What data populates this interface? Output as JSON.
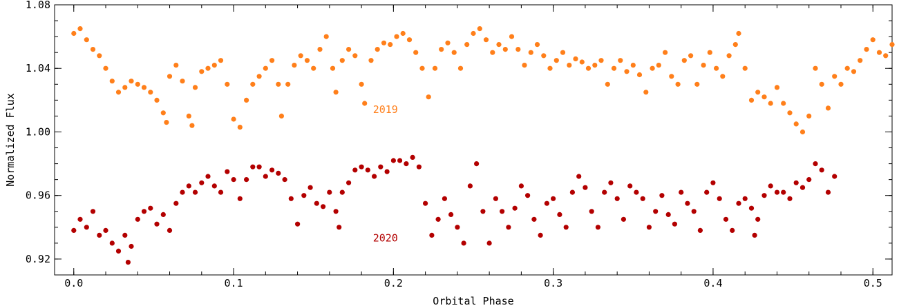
{
  "chart_data": {
    "type": "scatter",
    "title": "",
    "xlabel": "Orbital Phase",
    "ylabel": "Normalized Flux",
    "xlim": [
      -0.012,
      0.512
    ],
    "ylim": [
      0.91,
      1.08
    ],
    "x_ticks": [
      0.0,
      0.1,
      0.2,
      0.3,
      0.4,
      0.5
    ],
    "x_tick_labels": [
      "0.0",
      "0.1",
      "0.2",
      "0.3",
      "0.4",
      "0.5"
    ],
    "y_ticks": [
      0.92,
      0.96,
      1.0,
      1.04,
      1.08
    ],
    "y_tick_labels": [
      "0.92",
      "0.96",
      "1.00",
      "1.04",
      "1.08"
    ],
    "grid": false,
    "annotations": [
      {
        "text": "2019",
        "x": 0.195,
        "y": 1.012,
        "color": "#ff7f1a"
      },
      {
        "text": "2020",
        "x": 0.195,
        "y": 0.931,
        "color": "#b30000"
      }
    ],
    "series": [
      {
        "name": "2019",
        "color": "#ff7f1a",
        "x": [
          0.0,
          0.004,
          0.008,
          0.012,
          0.016,
          0.02,
          0.024,
          0.028,
          0.032,
          0.036,
          0.04,
          0.044,
          0.048,
          0.052,
          0.056,
          0.058,
          0.06,
          0.064,
          0.068,
          0.072,
          0.074,
          0.076,
          0.08,
          0.084,
          0.088,
          0.092,
          0.096,
          0.1,
          0.104,
          0.108,
          0.112,
          0.116,
          0.12,
          0.124,
          0.128,
          0.13,
          0.134,
          0.138,
          0.142,
          0.146,
          0.15,
          0.154,
          0.158,
          0.162,
          0.164,
          0.168,
          0.172,
          0.176,
          0.18,
          0.182,
          0.186,
          0.19,
          0.194,
          0.198,
          0.202,
          0.206,
          0.21,
          0.214,
          0.218,
          0.222,
          0.226,
          0.23,
          0.234,
          0.238,
          0.242,
          0.246,
          0.25,
          0.254,
          0.258,
          0.262,
          0.266,
          0.27,
          0.274,
          0.278,
          0.282,
          0.286,
          0.29,
          0.294,
          0.298,
          0.302,
          0.306,
          0.31,
          0.314,
          0.318,
          0.322,
          0.326,
          0.33,
          0.334,
          0.338,
          0.342,
          0.346,
          0.35,
          0.354,
          0.358,
          0.362,
          0.366,
          0.37,
          0.374,
          0.378,
          0.382,
          0.386,
          0.39,
          0.394,
          0.398,
          0.402,
          0.406,
          0.41,
          0.414,
          0.416,
          0.42,
          0.424,
          0.428,
          0.432,
          0.436,
          0.44,
          0.444,
          0.448,
          0.452,
          0.456,
          0.46,
          0.464,
          0.468,
          0.472,
          0.476,
          0.48,
          0.484,
          0.488,
          0.492,
          0.496,
          0.5,
          0.504,
          0.508,
          0.512
        ],
        "y": [
          1.062,
          1.065,
          1.058,
          1.052,
          1.048,
          1.04,
          1.032,
          1.025,
          1.028,
          1.032,
          1.03,
          1.028,
          1.025,
          1.02,
          1.012,
          1.006,
          1.035,
          1.042,
          1.032,
          1.01,
          1.004,
          1.028,
          1.038,
          1.04,
          1.042,
          1.045,
          1.03,
          1.008,
          1.003,
          1.02,
          1.03,
          1.035,
          1.04,
          1.045,
          1.03,
          1.01,
          1.03,
          1.042,
          1.048,
          1.045,
          1.04,
          1.052,
          1.06,
          1.04,
          1.025,
          1.045,
          1.052,
          1.048,
          1.03,
          1.018,
          1.045,
          1.052,
          1.056,
          1.055,
          1.06,
          1.062,
          1.058,
          1.05,
          1.04,
          1.022,
          1.04,
          1.052,
          1.056,
          1.05,
          1.04,
          1.055,
          1.062,
          1.065,
          1.058,
          1.05,
          1.055,
          1.052,
          1.06,
          1.052,
          1.042,
          1.05,
          1.055,
          1.048,
          1.04,
          1.045,
          1.05,
          1.042,
          1.046,
          1.044,
          1.04,
          1.042,
          1.045,
          1.03,
          1.04,
          1.045,
          1.038,
          1.042,
          1.036,
          1.025,
          1.04,
          1.042,
          1.05,
          1.035,
          1.03,
          1.045,
          1.048,
          1.03,
          1.042,
          1.05,
          1.04,
          1.035,
          1.048,
          1.055,
          1.062,
          1.04,
          1.02,
          1.025,
          1.022,
          1.018,
          1.028,
          1.018,
          1.012,
          1.005,
          1.0,
          1.01,
          1.04,
          1.03,
          1.015,
          1.035,
          1.03,
          1.04,
          1.038,
          1.045,
          1.052,
          1.058,
          1.05,
          1.048,
          1.055
        ]
      },
      {
        "name": "2020",
        "color": "#b30000",
        "x": [
          0.0,
          0.004,
          0.008,
          0.012,
          0.016,
          0.02,
          0.024,
          0.028,
          0.032,
          0.034,
          0.036,
          0.04,
          0.044,
          0.048,
          0.052,
          0.056,
          0.06,
          0.064,
          0.068,
          0.072,
          0.076,
          0.08,
          0.084,
          0.088,
          0.092,
          0.096,
          0.1,
          0.104,
          0.108,
          0.112,
          0.116,
          0.12,
          0.124,
          0.128,
          0.132,
          0.136,
          0.14,
          0.144,
          0.148,
          0.152,
          0.156,
          0.16,
          0.164,
          0.166,
          0.168,
          0.172,
          0.176,
          0.18,
          0.184,
          0.188,
          0.192,
          0.196,
          0.2,
          0.204,
          0.208,
          0.212,
          0.216,
          0.22,
          0.224,
          0.228,
          0.232,
          0.236,
          0.24,
          0.244,
          0.248,
          0.252,
          0.256,
          0.26,
          0.264,
          0.268,
          0.272,
          0.276,
          0.28,
          0.284,
          0.288,
          0.292,
          0.296,
          0.3,
          0.304,
          0.308,
          0.312,
          0.316,
          0.32,
          0.324,
          0.328,
          0.332,
          0.336,
          0.34,
          0.344,
          0.348,
          0.352,
          0.356,
          0.36,
          0.364,
          0.368,
          0.372,
          0.376,
          0.38,
          0.384,
          0.388,
          0.392,
          0.396,
          0.4,
          0.404,
          0.408,
          0.412,
          0.416,
          0.42,
          0.424,
          0.426,
          0.428,
          0.432,
          0.436,
          0.44,
          0.444,
          0.448,
          0.452,
          0.456,
          0.46,
          0.464,
          0.468,
          0.472,
          0.476
        ],
        "y": [
          0.938,
          0.945,
          0.94,
          0.95,
          0.935,
          0.938,
          0.93,
          0.925,
          0.935,
          0.918,
          0.928,
          0.945,
          0.95,
          0.952,
          0.942,
          0.948,
          0.938,
          0.955,
          0.962,
          0.966,
          0.962,
          0.968,
          0.972,
          0.966,
          0.962,
          0.975,
          0.97,
          0.958,
          0.97,
          0.978,
          0.978,
          0.972,
          0.976,
          0.974,
          0.97,
          0.958,
          0.942,
          0.96,
          0.965,
          0.955,
          0.953,
          0.962,
          0.95,
          0.94,
          0.962,
          0.968,
          0.976,
          0.978,
          0.976,
          0.972,
          0.978,
          0.975,
          0.982,
          0.982,
          0.98,
          0.984,
          0.978,
          0.955,
          0.935,
          0.945,
          0.958,
          0.948,
          0.94,
          0.93,
          0.966,
          0.98,
          0.95,
          0.93,
          0.958,
          0.95,
          0.94,
          0.952,
          0.966,
          0.96,
          0.945,
          0.935,
          0.955,
          0.958,
          0.948,
          0.94,
          0.962,
          0.972,
          0.965,
          0.95,
          0.94,
          0.962,
          0.968,
          0.958,
          0.945,
          0.966,
          0.962,
          0.958,
          0.94,
          0.95,
          0.96,
          0.948,
          0.942,
          0.962,
          0.955,
          0.95,
          0.938,
          0.962,
          0.968,
          0.958,
          0.945,
          0.938,
          0.955,
          0.958,
          0.952,
          0.935,
          0.945,
          0.96,
          0.966,
          0.962,
          0.962,
          0.958,
          0.968,
          0.965,
          0.97,
          0.98,
          0.976,
          0.962,
          0.972
        ]
      }
    ]
  }
}
